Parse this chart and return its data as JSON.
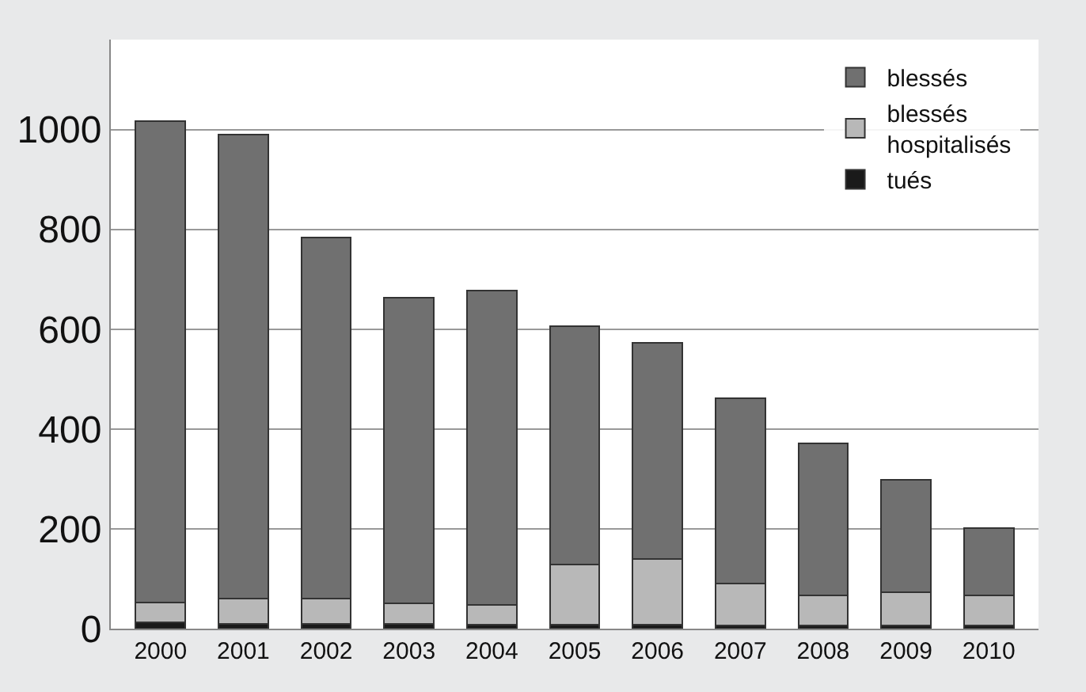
{
  "chart_data": {
    "type": "bar",
    "stacked": true,
    "categories": [
      "2000",
      "2001",
      "2002",
      "2003",
      "2004",
      "2005",
      "2006",
      "2007",
      "2008",
      "2009",
      "2010"
    ],
    "series": [
      {
        "name": "tués",
        "color": "#1a1a1a",
        "values": [
          12,
          10,
          10,
          10,
          8,
          8,
          8,
          7,
          7,
          6,
          6
        ]
      },
      {
        "name": "blessés hospitalisés",
        "color": "#b8b8b8",
        "values": [
          40,
          50,
          50,
          40,
          40,
          121,
          132,
          83,
          60,
          67,
          61
        ]
      },
      {
        "name": "blessés",
        "color": "#707070",
        "values": [
          965,
          929,
          723,
          613,
          630,
          477,
          433,
          371,
          304,
          225,
          135
        ]
      }
    ],
    "ylim": [
      0,
      1180
    ],
    "yticks": [
      0,
      200,
      400,
      600,
      800,
      1000
    ],
    "grid": "y",
    "legend": "top right"
  }
}
